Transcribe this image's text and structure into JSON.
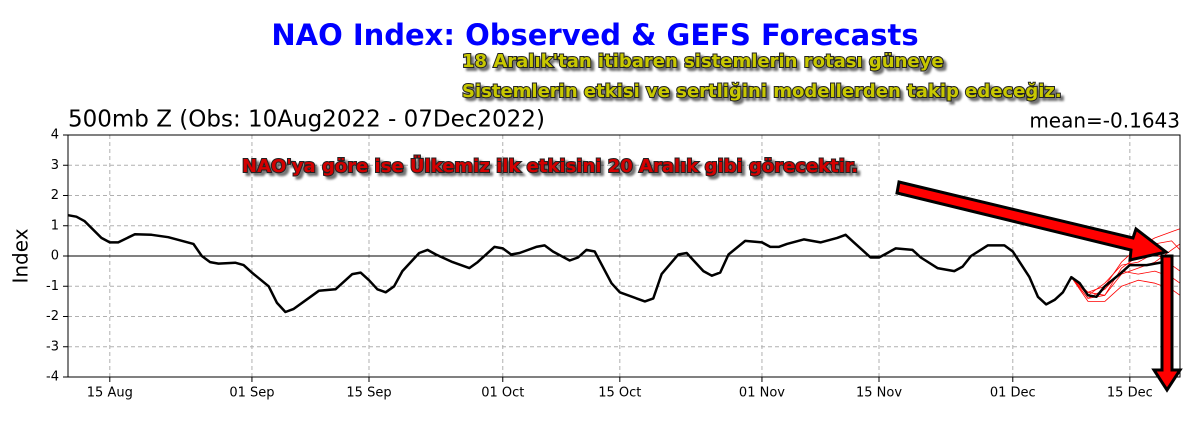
{
  "chart_data": {
    "type": "line",
    "title": "NAO Index: Observed & GEFS Forecasts",
    "subtitle": "500mb Z (Obs: 10Aug2022 - 07Dec2022)",
    "annotation_right": "mean=-0.1643",
    "y_label": "Index",
    "annotations": [
      "18 Aralık'tan itibaren sistemlerin rotası güneye",
      "Sistemlerin etkisi ve sertliğini modellerden takip edeceğiz.",
      "NAO'ya göre ise Ülkemiz ilk etkisini 20 Aralık gibi görecektir."
    ],
    "xlim": [
      "2022-08-10",
      "2022-12-21"
    ],
    "xticks": [
      {
        "value": "2022-08-15",
        "label": "15 Aug"
      },
      {
        "value": "2022-09-01",
        "label": "01 Sep"
      },
      {
        "value": "2022-09-15",
        "label": "15 Sep"
      },
      {
        "value": "2022-10-01",
        "label": "01 Oct"
      },
      {
        "value": "2022-10-15",
        "label": "15 Oct"
      },
      {
        "value": "2022-11-01",
        "label": "01 Nov"
      },
      {
        "value": "2022-11-15",
        "label": "15 Nov"
      },
      {
        "value": "2022-12-01",
        "label": "01 Dec"
      },
      {
        "value": "2022-12-15",
        "label": "15 Dec"
      }
    ],
    "ylim": [
      -4,
      4
    ],
    "yticks": [
      -4,
      -3,
      -2,
      -1,
      0,
      1,
      2,
      3,
      4
    ],
    "hlines": [
      0
    ],
    "grid": true,
    "series": [
      {
        "color": "#ff0000",
        "x": [
          "2022-12-08",
          "2022-12-10",
          "2022-12-12",
          "2022-12-14",
          "2022-12-16",
          "2022-12-18",
          "2022-12-20",
          "2022-12-21"
        ],
        "values": [
          -0.7,
          -1.2,
          -1.0,
          -0.2,
          0.3,
          0.6,
          0.8,
          0.9
        ]
      },
      {
        "color": "#ff0000",
        "x": [
          "2022-12-08",
          "2022-12-10",
          "2022-12-12",
          "2022-12-14",
          "2022-12-16",
          "2022-12-18",
          "2022-12-20",
          "2022-12-21"
        ],
        "values": [
          -0.7,
          -1.4,
          -1.3,
          -0.6,
          -0.4,
          -0.2,
          0.2,
          0.4
        ]
      },
      {
        "color": "#ff0000",
        "x": [
          "2022-12-08",
          "2022-12-10",
          "2022-12-12",
          "2022-12-14",
          "2022-12-16",
          "2022-12-18",
          "2022-12-20",
          "2022-12-21"
        ],
        "values": [
          -0.7,
          -1.5,
          -1.5,
          -1.0,
          -0.8,
          -0.9,
          -1.1,
          -1.3
        ]
      },
      {
        "color": "#ff0000",
        "x": [
          "2022-12-08",
          "2022-12-10",
          "2022-12-12",
          "2022-12-14",
          "2022-12-16",
          "2022-12-18",
          "2022-12-20",
          "2022-12-21"
        ],
        "values": [
          -0.7,
          -1.3,
          -0.9,
          -0.3,
          -0.2,
          0.1,
          -0.3,
          -0.5
        ]
      },
      {
        "color": "#ff0000",
        "x": [
          "2022-12-08",
          "2022-12-10",
          "2022-12-12",
          "2022-12-14",
          "2022-12-16",
          "2022-12-18",
          "2022-12-20",
          "2022-12-21"
        ],
        "values": [
          -0.7,
          -1.4,
          -1.1,
          -0.5,
          -0.6,
          -0.5,
          -0.7,
          -0.9
        ]
      },
      {
        "color": "#ff0000",
        "x": [
          "2022-12-08",
          "2022-12-10",
          "2022-12-12",
          "2022-12-14",
          "2022-12-16",
          "2022-12-18",
          "2022-12-20",
          "2022-12-21"
        ],
        "values": [
          -0.7,
          -1.2,
          -1.3,
          -0.4,
          0.0,
          0.4,
          0.5,
          0.2
        ]
      },
      {
        "color": "#000000",
        "x": [
          "2022-08-10",
          "2022-08-11",
          "2022-08-12",
          "2022-08-14",
          "2022-08-15",
          "2022-08-16",
          "2022-08-18",
          "2022-08-20",
          "2022-08-22",
          "2022-08-23",
          "2022-08-25",
          "2022-08-26",
          "2022-08-27",
          "2022-08-28",
          "2022-08-30",
          "2022-08-31",
          "2022-09-01",
          "2022-09-03",
          "2022-09-04",
          "2022-09-05",
          "2022-09-06",
          "2022-09-08",
          "2022-09-09",
          "2022-09-11",
          "2022-09-12",
          "2022-09-13",
          "2022-09-14",
          "2022-09-15",
          "2022-09-16",
          "2022-09-17",
          "2022-09-18",
          "2022-09-19",
          "2022-09-21",
          "2022-09-22",
          "2022-09-23",
          "2022-09-25",
          "2022-09-27",
          "2022-09-28",
          "2022-09-30",
          "2022-10-01",
          "2022-10-02",
          "2022-10-03",
          "2022-10-05",
          "2022-10-06",
          "2022-10-07",
          "2022-10-09",
          "2022-10-10",
          "2022-10-11",
          "2022-10-12",
          "2022-10-14",
          "2022-10-15",
          "2022-10-17",
          "2022-10-18",
          "2022-10-19",
          "2022-10-20",
          "2022-10-22",
          "2022-10-23",
          "2022-10-24",
          "2022-10-25",
          "2022-10-26",
          "2022-10-27",
          "2022-10-28",
          "2022-10-30",
          "2022-11-01",
          "2022-11-02",
          "2022-11-03",
          "2022-11-04",
          "2022-11-06",
          "2022-11-07",
          "2022-11-08",
          "2022-11-10",
          "2022-11-11",
          "2022-11-12",
          "2022-11-14",
          "2022-11-15",
          "2022-11-16",
          "2022-11-17",
          "2022-11-19",
          "2022-11-20",
          "2022-11-22",
          "2022-11-24",
          "2022-11-25",
          "2022-11-26",
          "2022-11-28",
          "2022-11-30",
          "2022-12-01",
          "2022-12-03",
          "2022-12-04",
          "2022-12-05",
          "2022-12-06",
          "2022-12-07",
          "2022-12-08",
          "2022-12-09",
          "2022-12-10",
          "2022-12-11",
          "2022-12-12",
          "2022-12-14",
          "2022-12-15",
          "2022-12-17",
          "2022-12-19",
          "2022-12-20"
        ],
        "values": [
          1.35,
          1.3,
          1.15,
          0.6,
          0.45,
          0.45,
          0.72,
          0.7,
          0.62,
          0.55,
          0.4,
          0.0,
          -0.2,
          -0.25,
          -0.22,
          -0.3,
          -0.55,
          -1.0,
          -1.55,
          -1.85,
          -1.75,
          -1.35,
          -1.15,
          -1.1,
          -0.85,
          -0.6,
          -0.55,
          -0.8,
          -1.1,
          -1.2,
          -1.0,
          -0.5,
          0.1,
          0.2,
          0.05,
          -0.2,
          -0.4,
          -0.2,
          0.3,
          0.25,
          0.05,
          0.1,
          0.3,
          0.35,
          0.15,
          -0.15,
          -0.05,
          0.2,
          0.15,
          -0.9,
          -1.2,
          -1.4,
          -1.5,
          -1.4,
          -0.6,
          0.05,
          0.1,
          -0.2,
          -0.5,
          -0.65,
          -0.55,
          0.05,
          0.5,
          0.45,
          0.3,
          0.3,
          0.4,
          0.55,
          0.5,
          0.45,
          0.6,
          0.7,
          0.45,
          -0.05,
          -0.05,
          0.1,
          0.25,
          0.2,
          -0.05,
          -0.4,
          -0.5,
          -0.35,
          0.0,
          0.35,
          0.35,
          0.15,
          -0.7,
          -1.35,
          -1.6,
          -1.45,
          -1.2,
          -0.7,
          -0.9,
          -1.3,
          -1.35,
          -1.0,
          -0.55,
          -0.3,
          -0.3,
          -0.2,
          -0.15
        ]
      }
    ]
  }
}
